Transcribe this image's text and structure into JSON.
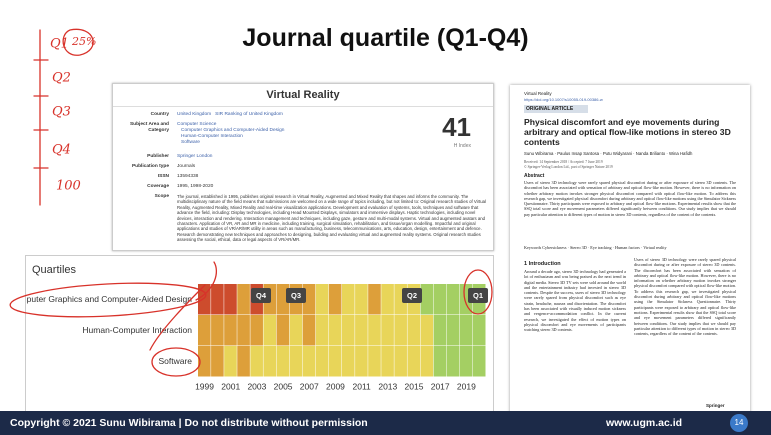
{
  "title": "Journal quartile (Q1-Q4)",
  "annotations": [
    "Q1",
    "25%",
    "Q2",
    "Q3",
    "Q4",
    "100"
  ],
  "journal": {
    "name": "Virtual Reality",
    "country_label": "Country",
    "country": "United Kingdom",
    "country_rank": "SIR Ranking of United Kingdom",
    "subject_label": "Subject Area and Category",
    "subject_area": "Computer Science",
    "subject_categories": [
      "Computer Graphics and Computer-Aided Design",
      "Human-Computer Interaction",
      "Software"
    ],
    "publisher_label": "Publisher",
    "publisher": "Springer London",
    "type_label": "Publication type",
    "type": "Journals",
    "issn_label": "ISSN",
    "issn": "13594338",
    "coverage_label": "Coverage",
    "coverage": "1995, 1998-2020",
    "scope_label": "Scope",
    "scope": "The journal, established in 1995, publishes original research in Virtual Reality, Augmented and Mixed Reality that shapes and informs the community. The multidisciplinary nature of the field means that submissions are welcomed on a wide range of topics including, but not limited to: Original research studies of Virtual Reality, Augmented Reality, Mixed Reality and real-time visualization applications. Development and evaluation of systems, tools, techniques and software that advance the field, including: Display technologies, including Head Mounted Displays, simulators and immersive displays. Haptic technologies, including novel devices, interaction and rendering. Interaction management and techniques, including gaze, gesture and multi-modal systems. Virtual and augmented avatars and characters. Application of VR, AR and MR in medicine, including training, surgical simulation, rehabilitation, and tissue/organ modelling. Impactful and original applications and studies of VR/AR/MR utility in areas such as manufacturing, business, telecommunications, arts, education, design, entertainment and defence. Research demonstrating new techniques and approaches to designing, building and evaluating virtual and augmented reality systems. Original research studies assessing the social, ethical, data or legal aspects of VR/AR/MR.",
    "h_index": {
      "value": 41,
      "label": "H Index"
    }
  },
  "quartiles": {
    "title": "Quartiles",
    "categories": [
      "Computer Graphics and Computer-Aided Design",
      "Human-Computer Interaction",
      "Software"
    ],
    "x_labels": [
      1999,
      2001,
      2003,
      2005,
      2007,
      2009,
      2011,
      2013,
      2015,
      2017,
      2019
    ],
    "markers": [
      "Q4",
      "Q3",
      "Q2",
      "Q1"
    ],
    "quartile_colors": [
      "#a4cf63",
      "#e8d559",
      "#dd9f3a",
      "#cd4c2d"
    ],
    "cells": [
      [
        4,
        4,
        4,
        3,
        4,
        3,
        3,
        3,
        3,
        2,
        3,
        2,
        2,
        3,
        2,
        2,
        2,
        1,
        1,
        1,
        1,
        1
      ],
      [
        3,
        3,
        3,
        3,
        3,
        2,
        3,
        2,
        3,
        2,
        2,
        2,
        2,
        2,
        2,
        2,
        2,
        2,
        1,
        1,
        1,
        1
      ],
      [
        3,
        3,
        2,
        3,
        2,
        2,
        2,
        2,
        2,
        2,
        2,
        2,
        2,
        2,
        2,
        2,
        2,
        2,
        1,
        1,
        1,
        1
      ]
    ]
  },
  "paper": {
    "journal": "Virtual Reality",
    "doi": "https://doi.org/10.1007/s10055-019-00386-w",
    "label": "ORIGINAL ARTICLE",
    "title": "Physical discomfort and eye movements during arbitrary and optical flow-like motions in stereo 3D contents",
    "authors": "Sunu Wibirama · Paulus Insap Santosa · Putu Widyarani · Nanda Brilianto · Wina Hafidh",
    "dates": "Received: 14 September 2018 / Accepted: 7 June 2019",
    "copyright": "© Springer-Verlag London Ltd., part of Springer Nature 2019",
    "abstract_heading": "Abstract",
    "abstract": "Users of stereo 3D technology were rarely spared physical discomfort during or after exposure of stereo 3D contents. The discomfort has been associated with sensation of arbitrary and optical flow-like motion. However, there is no information on whether arbitrary motion invokes stronger physical discomfort compared with optical flow-like motion. To address this research gap, we investigated physical discomfort during arbitrary and optical flow-like motions using the Simulator Sickness Questionnaire. Thirty participants were exposed to arbitrary and optical flow-like motions. Experimental results show that the SSQ total score and eye movement parameters differed significantly between conditions. Our study implies that we should pay particular attention to different types of motion in stereo 3D contents, regardless of the content of the contents.",
    "keywords": "Keywords Cybersickness · Stereo 3D · Eye tracking · Human factors · Virtual reality",
    "intro_heading": "1 Introduction",
    "intro": "Around a decade ago, stereo 3D technology had generated a lot of enthusiasm and was being praised as the next trend in digital media. Stereo 3D TV sets were sold around the world and the entertainment industry had invested in stereo 3D contents. Despite the success, users of stereo 3D technology were rarely spared from physical discomfort such as eye strain, headache, nausea and disorientation. The discomfort has been associated with visually induced motion sickness and vergence-accommodation conflict. In the current research, we investigated the effect of motion types on physical discomfort and eye movements of participants watching stereo 3D contents.",
    "publisher": "Springer"
  },
  "footer": {
    "copyright": "Copyright © 2021 Sunu Wibirama | Do not distribute without permission",
    "url": "www.ugm.ac.id",
    "page": "14"
  }
}
